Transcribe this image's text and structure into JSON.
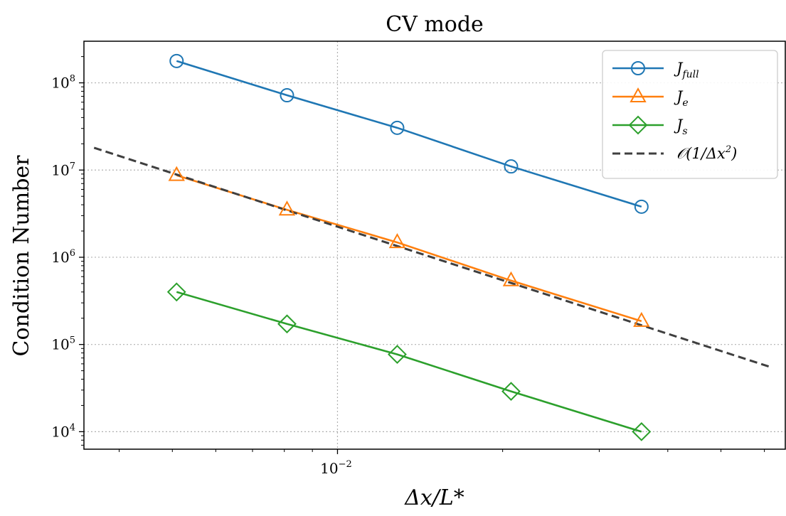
{
  "chart_data": {
    "type": "line",
    "title": "CV mode",
    "xlabel": "Δx/L*",
    "ylabel": "Condition Number",
    "x_scale": "log",
    "y_scale": "log",
    "xlim": [
      0.00345,
      0.0655
    ],
    "ylim": [
      6300,
      300000000
    ],
    "grid": true,
    "legend_position": "top-right",
    "x_ticks": [
      {
        "value": 0.01,
        "base": "10",
        "exp": "−2"
      }
    ],
    "y_ticks": [
      {
        "value": 10000,
        "base": "10",
        "exp": "4"
      },
      {
        "value": 100000,
        "base": "10",
        "exp": "5"
      },
      {
        "value": 1000000,
        "base": "10",
        "exp": "6"
      },
      {
        "value": 10000000,
        "base": "10",
        "exp": "7"
      },
      {
        "value": 100000000,
        "base": "10",
        "exp": "8"
      }
    ],
    "series": [
      {
        "name": "J_full",
        "legend_base": "J",
        "legend_sub": "full",
        "color": "#1f77b4",
        "marker": "circle",
        "linestyle": "solid",
        "x": [
          0.00509,
          0.00809,
          0.01285,
          0.02072,
          0.03582
        ],
        "y": [
          178000000,
          72000000,
          30500000,
          11000000,
          3800000
        ]
      },
      {
        "name": "J_e",
        "legend_base": "J",
        "legend_sub": "e",
        "color": "#ff7f0e",
        "marker": "triangle",
        "linestyle": "solid",
        "x": [
          0.00509,
          0.00809,
          0.01285,
          0.02072,
          0.03582
        ],
        "y": [
          8700000,
          3500000,
          1480000,
          540000,
          185000
        ]
      },
      {
        "name": "J_s",
        "legend_base": "J",
        "legend_sub": "s",
        "color": "#2ca02c",
        "marker": "diamond",
        "linestyle": "solid",
        "x": [
          0.00509,
          0.00809,
          0.01285,
          0.02072,
          0.03582
        ],
        "y": [
          400000,
          172000,
          77000,
          29000,
          10000
        ]
      },
      {
        "name": "O(1/Δx²)",
        "legend_text": "𝒪(1/Δx",
        "legend_sup": "2",
        "legend_close": ")",
        "color": "#3f3f3f",
        "marker": "none",
        "linestyle": "dashed",
        "x": [
          0.0036,
          0.0616
        ],
        "y": [
          18000000,
          55000
        ]
      }
    ]
  }
}
